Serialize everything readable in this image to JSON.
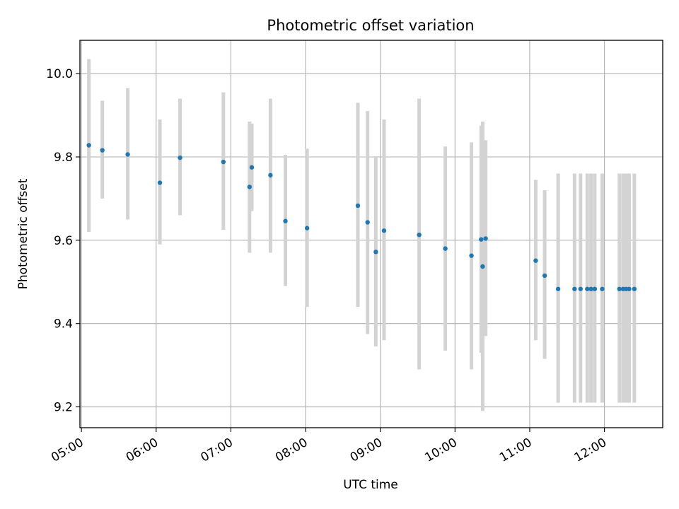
{
  "chart_data": {
    "type": "scatter",
    "title": "Photometric offset variation",
    "xlabel": "UTC time",
    "ylabel": "Photometric offset",
    "x_unit": "UTC hours",
    "xlim": [
      4.98,
      12.78
    ],
    "ylim": [
      9.15,
      10.08
    ],
    "grid": true,
    "x_tick_values": [
      5,
      6,
      7,
      8,
      9,
      10,
      11,
      12
    ],
    "x_tick_labels": [
      "05:00",
      "06:00",
      "07:00",
      "08:00",
      "09:00",
      "10:00",
      "11:00",
      "12:00"
    ],
    "y_tick_values": [
      9.2,
      9.4,
      9.6,
      9.8,
      10.0
    ],
    "y_tick_labels": [
      "9.2",
      "9.4",
      "9.6",
      "9.8",
      "10.0"
    ],
    "colors": {
      "points": "#1f77b4",
      "error_bars": "#d3d3d3",
      "grid": "#b0b0b0"
    },
    "series": [
      {
        "points": [
          {
            "x": 5.1,
            "y": 9.828,
            "lo": 9.62,
            "hi": 10.035
          },
          {
            "x": 5.28,
            "y": 9.816,
            "lo": 9.7,
            "hi": 9.935
          },
          {
            "x": 5.62,
            "y": 9.806,
            "lo": 9.65,
            "hi": 9.965
          },
          {
            "x": 6.05,
            "y": 9.738,
            "lo": 9.59,
            "hi": 9.89
          },
          {
            "x": 6.32,
            "y": 9.798,
            "lo": 9.66,
            "hi": 9.94
          },
          {
            "x": 6.9,
            "y": 9.788,
            "lo": 9.625,
            "hi": 9.955
          },
          {
            "x": 7.25,
            "y": 9.728,
            "lo": 9.57,
            "hi": 9.885
          },
          {
            "x": 7.28,
            "y": 9.775,
            "lo": 9.67,
            "hi": 9.88
          },
          {
            "x": 7.53,
            "y": 9.756,
            "lo": 9.57,
            "hi": 9.94
          },
          {
            "x": 7.73,
            "y": 9.646,
            "lo": 9.49,
            "hi": 9.805
          },
          {
            "x": 8.02,
            "y": 9.629,
            "lo": 9.44,
            "hi": 9.82
          },
          {
            "x": 8.7,
            "y": 9.683,
            "lo": 9.44,
            "hi": 9.93
          },
          {
            "x": 8.83,
            "y": 9.643,
            "lo": 9.375,
            "hi": 9.91
          },
          {
            "x": 8.94,
            "y": 9.572,
            "lo": 9.345,
            "hi": 9.8
          },
          {
            "x": 9.05,
            "y": 9.623,
            "lo": 9.36,
            "hi": 9.89
          },
          {
            "x": 9.52,
            "y": 9.613,
            "lo": 9.29,
            "hi": 9.94
          },
          {
            "x": 9.87,
            "y": 9.58,
            "lo": 9.335,
            "hi": 9.825
          },
          {
            "x": 10.22,
            "y": 9.563,
            "lo": 9.29,
            "hi": 9.835
          },
          {
            "x": 10.35,
            "y": 9.602,
            "lo": 9.33,
            "hi": 9.875
          },
          {
            "x": 10.37,
            "y": 9.537,
            "lo": 9.19,
            "hi": 9.885
          },
          {
            "x": 10.41,
            "y": 9.604,
            "lo": 9.37,
            "hi": 9.84
          },
          {
            "x": 11.08,
            "y": 9.551,
            "lo": 9.36,
            "hi": 9.745
          },
          {
            "x": 11.2,
            "y": 9.515,
            "lo": 9.315,
            "hi": 9.72
          },
          {
            "x": 11.38,
            "y": 9.483,
            "lo": 9.21,
            "hi": 9.76
          },
          {
            "x": 11.6,
            "y": 9.483,
            "lo": 9.21,
            "hi": 9.76
          },
          {
            "x": 11.68,
            "y": 9.483,
            "lo": 9.21,
            "hi": 9.76
          },
          {
            "x": 11.77,
            "y": 9.483,
            "lo": 9.21,
            "hi": 9.76
          },
          {
            "x": 11.82,
            "y": 9.483,
            "lo": 9.21,
            "hi": 9.76
          },
          {
            "x": 11.87,
            "y": 9.483,
            "lo": 9.21,
            "hi": 9.76
          },
          {
            "x": 11.97,
            "y": 9.483,
            "lo": 9.21,
            "hi": 9.76
          },
          {
            "x": 12.2,
            "y": 9.483,
            "lo": 9.21,
            "hi": 9.76
          },
          {
            "x": 12.25,
            "y": 9.483,
            "lo": 9.21,
            "hi": 9.76
          },
          {
            "x": 12.29,
            "y": 9.483,
            "lo": 9.21,
            "hi": 9.76
          },
          {
            "x": 12.33,
            "y": 9.483,
            "lo": 9.21,
            "hi": 9.76
          },
          {
            "x": 12.4,
            "y": 9.483,
            "lo": 9.21,
            "hi": 9.76
          }
        ]
      }
    ]
  }
}
